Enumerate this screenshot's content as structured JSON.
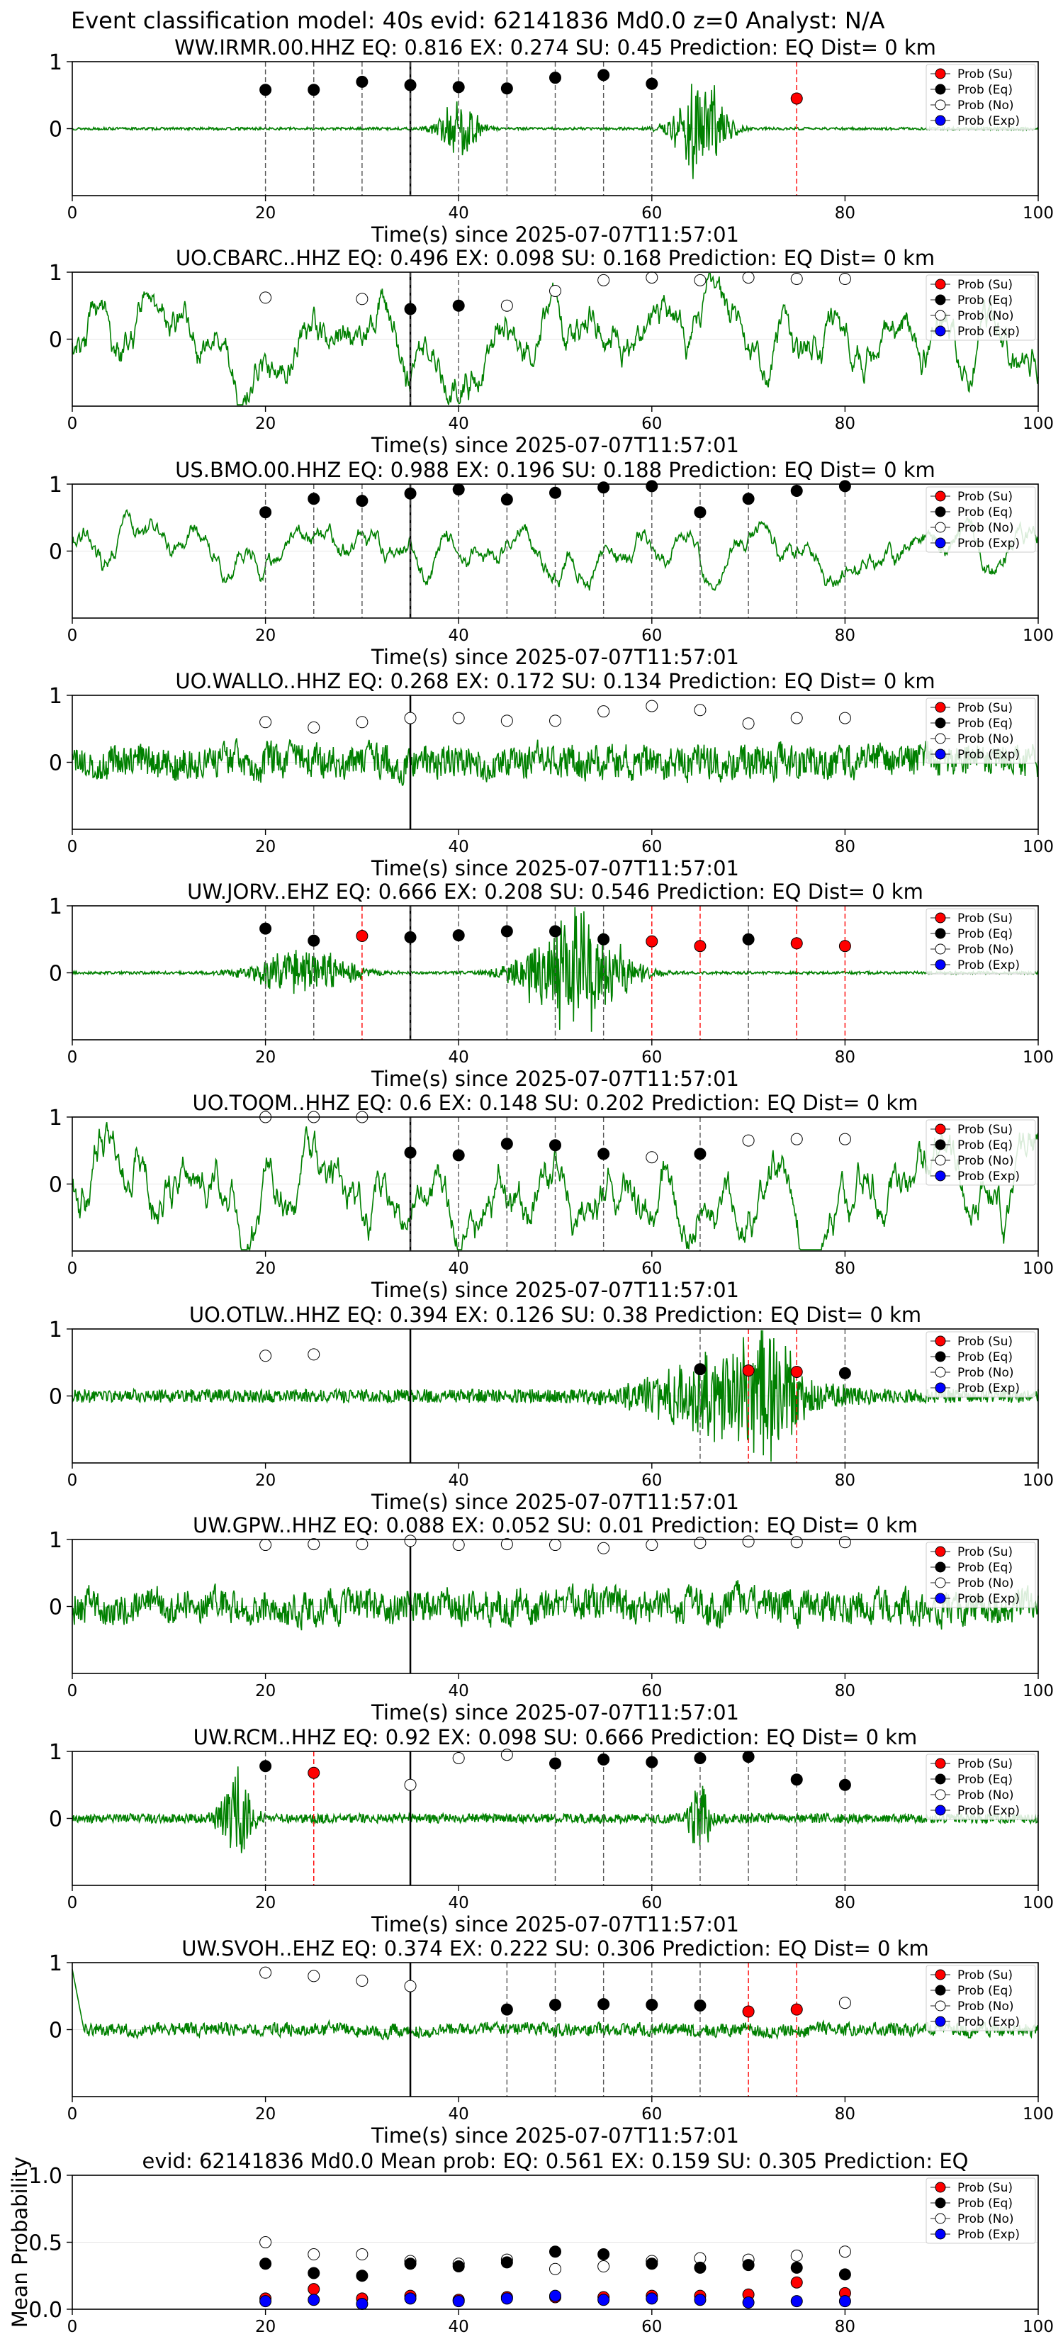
{
  "figure_title": "Event classification model: 40s evid: 62141836 Md0.0 z=0 Analyst: N/A",
  "legend": {
    "placement": "top-right",
    "entries": [
      {
        "label": "Prob (Su)",
        "fill": "#ff0000"
      },
      {
        "label": "Prob (Eq)",
        "fill": "#000000"
      },
      {
        "label": "Prob (No)",
        "fill": "#ffffff"
      },
      {
        "label": "Prob (Exp)",
        "fill": "#0000ff"
      }
    ]
  },
  "colors": {
    "trace": "#008000",
    "eq_line": "#555555",
    "su_line": "#ff0000",
    "origin_line": "#000000"
  },
  "chart_data": [
    {
      "type": "scatter",
      "title": "WW.IRMR.00.HHZ   EQ: 0.816  EX: 0.274  SU: 0.45   Prediction: EQ    Dist= 0 km",
      "xlabel": "Time(s) since 2025-07-07T11:57:01",
      "ylabel": "",
      "xlim": [
        0,
        100
      ],
      "ylim": [
        -1,
        1
      ],
      "x_ticks": [
        0,
        20,
        40,
        60,
        80,
        100
      ],
      "y_ticks": [
        0,
        1
      ],
      "origin_time": 35,
      "waveform": {
        "style": "quiet",
        "amp": 0.02,
        "bursts": [
          {
            "t": 40,
            "a": 0.4,
            "w": 2
          },
          {
            "t": 65,
            "a": 0.7,
            "w": 2.5
          }
        ]
      },
      "points": [
        {
          "x": 20,
          "y": 0.58,
          "class": "Eq"
        },
        {
          "x": 25,
          "y": 0.58,
          "class": "Eq"
        },
        {
          "x": 30,
          "y": 0.7,
          "class": "Eq"
        },
        {
          "x": 35,
          "y": 0.65,
          "class": "Eq"
        },
        {
          "x": 40,
          "y": 0.62,
          "class": "Eq"
        },
        {
          "x": 45,
          "y": 0.6,
          "class": "Eq"
        },
        {
          "x": 50,
          "y": 0.76,
          "class": "Eq"
        },
        {
          "x": 55,
          "y": 0.8,
          "class": "Eq"
        },
        {
          "x": 60,
          "y": 0.67,
          "class": "Eq"
        },
        {
          "x": 75,
          "y": 0.45,
          "class": "Su"
        }
      ]
    },
    {
      "type": "scatter",
      "title": "UO.CBARC..HHZ   EQ: 0.496  EX: 0.098  SU: 0.168   Prediction: EQ    Dist= 0 km",
      "xlabel": "Time(s) since 2025-07-07T11:57:01",
      "ylabel": "",
      "xlim": [
        0,
        100
      ],
      "ylim": [
        -1,
        1
      ],
      "x_ticks": [
        0,
        20,
        40,
        60,
        80,
        100
      ],
      "y_ticks": [
        0,
        1
      ],
      "origin_time": 35,
      "waveform": {
        "style": "wavy",
        "amp": 0.65
      },
      "points": [
        {
          "x": 20,
          "y": 0.62,
          "class": "No"
        },
        {
          "x": 30,
          "y": 0.6,
          "class": "No"
        },
        {
          "x": 35,
          "y": 0.45,
          "class": "Eq"
        },
        {
          "x": 40,
          "y": 0.5,
          "class": "Eq"
        },
        {
          "x": 45,
          "y": 0.5,
          "class": "No"
        },
        {
          "x": 50,
          "y": 0.72,
          "class": "No"
        },
        {
          "x": 55,
          "y": 0.88,
          "class": "No"
        },
        {
          "x": 60,
          "y": 0.92,
          "class": "No"
        },
        {
          "x": 65,
          "y": 0.88,
          "class": "No"
        },
        {
          "x": 70,
          "y": 0.92,
          "class": "No"
        },
        {
          "x": 75,
          "y": 0.9,
          "class": "No"
        },
        {
          "x": 80,
          "y": 0.9,
          "class": "No"
        }
      ]
    },
    {
      "type": "scatter",
      "title": "US.BMO.00.HHZ   EQ: 0.988  EX: 0.196  SU: 0.188   Prediction: EQ    Dist= 0 km",
      "xlabel": "Time(s) since 2025-07-07T11:57:01",
      "ylabel": "",
      "xlim": [
        0,
        100
      ],
      "ylim": [
        -1,
        1
      ],
      "x_ticks": [
        0,
        20,
        40,
        60,
        80,
        100
      ],
      "y_ticks": [
        0,
        1
      ],
      "origin_time": 35,
      "waveform": {
        "style": "wavy",
        "amp": 0.35
      },
      "points": [
        {
          "x": 20,
          "y": 0.58,
          "class": "Eq"
        },
        {
          "x": 25,
          "y": 0.78,
          "class": "Eq"
        },
        {
          "x": 30,
          "y": 0.75,
          "class": "Eq"
        },
        {
          "x": 35,
          "y": 0.86,
          "class": "Eq"
        },
        {
          "x": 40,
          "y": 0.92,
          "class": "Eq"
        },
        {
          "x": 45,
          "y": 0.77,
          "class": "Eq"
        },
        {
          "x": 50,
          "y": 0.87,
          "class": "Eq"
        },
        {
          "x": 55,
          "y": 0.95,
          "class": "Eq"
        },
        {
          "x": 60,
          "y": 0.97,
          "class": "Eq"
        },
        {
          "x": 65,
          "y": 0.58,
          "class": "Eq"
        },
        {
          "x": 70,
          "y": 0.78,
          "class": "Eq"
        },
        {
          "x": 75,
          "y": 0.9,
          "class": "Eq"
        },
        {
          "x": 80,
          "y": 0.97,
          "class": "Eq"
        }
      ]
    },
    {
      "type": "scatter",
      "title": "UO.WALLO..HHZ   EQ: 0.268  EX: 0.172  SU: 0.134   Prediction: EQ    Dist= 0 km",
      "xlabel": "Time(s) since 2025-07-07T11:57:01",
      "ylabel": "",
      "xlim": [
        0,
        100
      ],
      "ylim": [
        -1,
        1
      ],
      "x_ticks": [
        0,
        20,
        40,
        60,
        80,
        100
      ],
      "y_ticks": [
        0,
        1
      ],
      "origin_time": 35,
      "waveform": {
        "style": "noisy",
        "amp": 0.3
      },
      "points": [
        {
          "x": 20,
          "y": 0.6,
          "class": "No"
        },
        {
          "x": 25,
          "y": 0.52,
          "class": "No"
        },
        {
          "x": 30,
          "y": 0.6,
          "class": "No"
        },
        {
          "x": 35,
          "y": 0.66,
          "class": "No"
        },
        {
          "x": 40,
          "y": 0.66,
          "class": "No"
        },
        {
          "x": 45,
          "y": 0.62,
          "class": "No"
        },
        {
          "x": 50,
          "y": 0.62,
          "class": "No"
        },
        {
          "x": 55,
          "y": 0.76,
          "class": "No"
        },
        {
          "x": 60,
          "y": 0.84,
          "class": "No"
        },
        {
          "x": 65,
          "y": 0.78,
          "class": "No"
        },
        {
          "x": 70,
          "y": 0.58,
          "class": "No"
        },
        {
          "x": 75,
          "y": 0.66,
          "class": "No"
        },
        {
          "x": 80,
          "y": 0.66,
          "class": "No"
        }
      ]
    },
    {
      "type": "scatter",
      "title": "UW.JORV..EHZ   EQ: 0.666  EX: 0.208  SU: 0.546   Prediction: EQ    Dist= 0 km",
      "xlabel": "Time(s) since 2025-07-07T11:57:01",
      "ylabel": "",
      "xlim": [
        0,
        100
      ],
      "ylim": [
        -1,
        1
      ],
      "x_ticks": [
        0,
        20,
        40,
        60,
        80,
        100
      ],
      "y_ticks": [
        0,
        1
      ],
      "origin_time": 35,
      "waveform": {
        "style": "quiet",
        "amp": 0.02,
        "bursts": [
          {
            "t": 24,
            "a": 0.3,
            "w": 5
          },
          {
            "t": 52,
            "a": 0.8,
            "w": 5
          }
        ]
      },
      "points": [
        {
          "x": 20,
          "y": 0.66,
          "class": "Eq"
        },
        {
          "x": 25,
          "y": 0.48,
          "class": "Eq"
        },
        {
          "x": 30,
          "y": 0.55,
          "class": "Su"
        },
        {
          "x": 35,
          "y": 0.53,
          "class": "Eq"
        },
        {
          "x": 40,
          "y": 0.56,
          "class": "Eq"
        },
        {
          "x": 45,
          "y": 0.62,
          "class": "Eq"
        },
        {
          "x": 50,
          "y": 0.62,
          "class": "Eq"
        },
        {
          "x": 55,
          "y": 0.5,
          "class": "Eq"
        },
        {
          "x": 60,
          "y": 0.47,
          "class": "Su"
        },
        {
          "x": 65,
          "y": 0.4,
          "class": "Su"
        },
        {
          "x": 70,
          "y": 0.5,
          "class": "Eq"
        },
        {
          "x": 75,
          "y": 0.44,
          "class": "Su"
        },
        {
          "x": 80,
          "y": 0.4,
          "class": "Su"
        }
      ]
    },
    {
      "type": "scatter",
      "title": "UO.TOOM..HHZ   EQ: 0.6  EX: 0.148  SU: 0.202   Prediction: EQ    Dist= 0 km",
      "xlabel": "Time(s) since 2025-07-07T11:57:01",
      "ylabel": "",
      "xlim": [
        0,
        100
      ],
      "ylim": [
        -1,
        1
      ],
      "x_ticks": [
        0,
        20,
        40,
        60,
        80,
        100
      ],
      "y_ticks": [
        0,
        1
      ],
      "origin_time": 35,
      "waveform": {
        "style": "wavy",
        "amp": 0.75
      },
      "points": [
        {
          "x": 20,
          "y": 1.0,
          "class": "No"
        },
        {
          "x": 25,
          "y": 1.0,
          "class": "No"
        },
        {
          "x": 30,
          "y": 1.0,
          "class": "No"
        },
        {
          "x": 35,
          "y": 0.47,
          "class": "Eq"
        },
        {
          "x": 40,
          "y": 0.43,
          "class": "Eq"
        },
        {
          "x": 45,
          "y": 0.6,
          "class": "Eq"
        },
        {
          "x": 50,
          "y": 0.58,
          "class": "Eq"
        },
        {
          "x": 55,
          "y": 0.45,
          "class": "Eq"
        },
        {
          "x": 60,
          "y": 0.4,
          "class": "No"
        },
        {
          "x": 65,
          "y": 0.45,
          "class": "Eq"
        },
        {
          "x": 70,
          "y": 0.65,
          "class": "No"
        },
        {
          "x": 75,
          "y": 0.67,
          "class": "No"
        },
        {
          "x": 80,
          "y": 0.67,
          "class": "No"
        }
      ]
    },
    {
      "type": "scatter",
      "title": "UO.OTLW..HHZ   EQ: 0.394  EX: 0.126  SU: 0.38   Prediction: EQ    Dist= 0 km",
      "xlabel": "Time(s) since 2025-07-07T11:57:01",
      "ylabel": "",
      "xlim": [
        0,
        100
      ],
      "ylim": [
        -1,
        1
      ],
      "x_ticks": [
        0,
        20,
        40,
        60,
        80,
        100
      ],
      "y_ticks": [
        0,
        1
      ],
      "origin_time": 35,
      "waveform": {
        "style": "quiet",
        "amp": 0.1,
        "bursts": [
          {
            "t": 68,
            "a": 0.5,
            "w": 8
          },
          {
            "t": 72,
            "a": 0.7,
            "w": 2
          }
        ]
      },
      "points": [
        {
          "x": 20,
          "y": 0.6,
          "class": "No"
        },
        {
          "x": 25,
          "y": 0.62,
          "class": "No"
        },
        {
          "x": 65,
          "y": 0.4,
          "class": "Eq"
        },
        {
          "x": 70,
          "y": 0.38,
          "class": "Su"
        },
        {
          "x": 75,
          "y": 0.36,
          "class": "Su"
        },
        {
          "x": 80,
          "y": 0.34,
          "class": "Eq"
        }
      ]
    },
    {
      "type": "scatter",
      "title": "UW.GPW..HHZ   EQ: 0.088  EX: 0.052  SU: 0.01   Prediction: EQ    Dist= 0 km",
      "xlabel": "Time(s) since 2025-07-07T11:57:01",
      "ylabel": "",
      "xlim": [
        0,
        100
      ],
      "ylim": [
        -1,
        1
      ],
      "x_ticks": [
        0,
        20,
        40,
        60,
        80,
        100
      ],
      "y_ticks": [
        0,
        1
      ],
      "origin_time": 35,
      "waveform": {
        "style": "noisy",
        "amp": 0.3
      },
      "points": [
        {
          "x": 20,
          "y": 0.92,
          "class": "No"
        },
        {
          "x": 25,
          "y": 0.93,
          "class": "No"
        },
        {
          "x": 30,
          "y": 0.93,
          "class": "No"
        },
        {
          "x": 35,
          "y": 0.98,
          "class": "No"
        },
        {
          "x": 40,
          "y": 0.92,
          "class": "No"
        },
        {
          "x": 45,
          "y": 0.93,
          "class": "No"
        },
        {
          "x": 50,
          "y": 0.92,
          "class": "No"
        },
        {
          "x": 55,
          "y": 0.87,
          "class": "No"
        },
        {
          "x": 60,
          "y": 0.92,
          "class": "No"
        },
        {
          "x": 65,
          "y": 0.95,
          "class": "No"
        },
        {
          "x": 70,
          "y": 0.97,
          "class": "No"
        },
        {
          "x": 75,
          "y": 0.96,
          "class": "No"
        },
        {
          "x": 80,
          "y": 0.96,
          "class": "No"
        }
      ]
    },
    {
      "type": "scatter",
      "title": "UW.RCM..HHZ   EQ: 0.92  EX: 0.098  SU: 0.666   Prediction: EQ    Dist= 0 km",
      "xlabel": "Time(s) since 2025-07-07T11:57:01",
      "ylabel": "",
      "xlim": [
        0,
        100
      ],
      "ylim": [
        -1,
        1
      ],
      "x_ticks": [
        0,
        20,
        40,
        60,
        80,
        100
      ],
      "y_ticks": [
        0,
        1
      ],
      "origin_time": 35,
      "waveform": {
        "style": "quiet",
        "amp": 0.07,
        "bursts": [
          {
            "t": 17,
            "a": 0.6,
            "w": 1.5
          },
          {
            "t": 65,
            "a": 0.5,
            "w": 1
          }
        ]
      },
      "points": [
        {
          "x": 20,
          "y": 0.78,
          "class": "Eq"
        },
        {
          "x": 25,
          "y": 0.68,
          "class": "Su"
        },
        {
          "x": 35,
          "y": 0.5,
          "class": "No"
        },
        {
          "x": 40,
          "y": 0.9,
          "class": "No"
        },
        {
          "x": 45,
          "y": 0.95,
          "class": "No"
        },
        {
          "x": 50,
          "y": 0.82,
          "class": "Eq"
        },
        {
          "x": 55,
          "y": 0.88,
          "class": "Eq"
        },
        {
          "x": 60,
          "y": 0.84,
          "class": "Eq"
        },
        {
          "x": 65,
          "y": 0.9,
          "class": "Eq"
        },
        {
          "x": 70,
          "y": 0.92,
          "class": "Eq"
        },
        {
          "x": 75,
          "y": 0.58,
          "class": "Eq"
        },
        {
          "x": 80,
          "y": 0.5,
          "class": "Eq"
        }
      ]
    },
    {
      "type": "scatter",
      "title": "UW.SVOH..EHZ   EQ: 0.374  EX: 0.222  SU: 0.306   Prediction: EQ    Dist= 0 km",
      "xlabel": "Time(s) since 2025-07-07T11:57:01",
      "ylabel": "",
      "xlim": [
        0,
        100
      ],
      "ylim": [
        -1,
        1
      ],
      "x_ticks": [
        0,
        20,
        40,
        60,
        80,
        100
      ],
      "y_ticks": [
        0,
        1
      ],
      "origin_time": 35,
      "waveform": {
        "style": "noisy",
        "amp": 0.12,
        "start_spike": 0.9
      },
      "points": [
        {
          "x": 20,
          "y": 0.85,
          "class": "No"
        },
        {
          "x": 25,
          "y": 0.8,
          "class": "No"
        },
        {
          "x": 30,
          "y": 0.73,
          "class": "No"
        },
        {
          "x": 35,
          "y": 0.65,
          "class": "No"
        },
        {
          "x": 45,
          "y": 0.3,
          "class": "Eq"
        },
        {
          "x": 50,
          "y": 0.37,
          "class": "Eq"
        },
        {
          "x": 55,
          "y": 0.38,
          "class": "Eq"
        },
        {
          "x": 60,
          "y": 0.37,
          "class": "Eq"
        },
        {
          "x": 65,
          "y": 0.36,
          "class": "Eq"
        },
        {
          "x": 70,
          "y": 0.27,
          "class": "Su"
        },
        {
          "x": 75,
          "y": 0.3,
          "class": "Su"
        },
        {
          "x": 80,
          "y": 0.4,
          "class": "No"
        }
      ]
    },
    {
      "type": "scatter",
      "title": "evid: 62141836  Md0.0   Mean prob:   EQ: 0.561  EX: 0.159  SU: 0.305   Prediction: EQ",
      "xlabel": "",
      "ylabel": "Mean Probability",
      "xlim": [
        0,
        100
      ],
      "ylim": [
        0,
        1
      ],
      "x_ticks": [
        0,
        20,
        40,
        60,
        80,
        100
      ],
      "y_ticks": [
        0.0,
        0.5,
        1.0
      ],
      "y_tick_labels": [
        "0.0",
        "0.5",
        "1.0"
      ],
      "series": [
        {
          "name": "Prob (No)",
          "class": "No",
          "x": [
            20,
            25,
            30,
            35,
            40,
            45,
            50,
            55,
            60,
            65,
            70,
            75,
            80
          ],
          "values": [
            0.5,
            0.41,
            0.41,
            0.36,
            0.34,
            0.37,
            0.3,
            0.32,
            0.36,
            0.38,
            0.37,
            0.4,
            0.43
          ]
        },
        {
          "name": "Prob (Eq)",
          "class": "Eq",
          "x": [
            20,
            25,
            30,
            35,
            40,
            45,
            50,
            55,
            60,
            65,
            70,
            75,
            80
          ],
          "values": [
            0.34,
            0.27,
            0.25,
            0.34,
            0.32,
            0.35,
            0.43,
            0.41,
            0.34,
            0.31,
            0.33,
            0.31,
            0.26
          ]
        },
        {
          "name": "Prob (Su)",
          "class": "Su",
          "x": [
            20,
            25,
            30,
            35,
            40,
            45,
            50,
            55,
            60,
            65,
            70,
            75,
            80
          ],
          "values": [
            0.08,
            0.15,
            0.08,
            0.1,
            0.07,
            0.09,
            0.09,
            0.09,
            0.1,
            0.1,
            0.11,
            0.2,
            0.12
          ]
        },
        {
          "name": "Prob (Exp)",
          "class": "Exp",
          "x": [
            20,
            25,
            30,
            35,
            40,
            45,
            50,
            55,
            60,
            65,
            70,
            75,
            80
          ],
          "values": [
            0.06,
            0.07,
            0.04,
            0.08,
            0.06,
            0.08,
            0.1,
            0.07,
            0.08,
            0.07,
            0.05,
            0.06,
            0.06
          ]
        }
      ]
    }
  ]
}
